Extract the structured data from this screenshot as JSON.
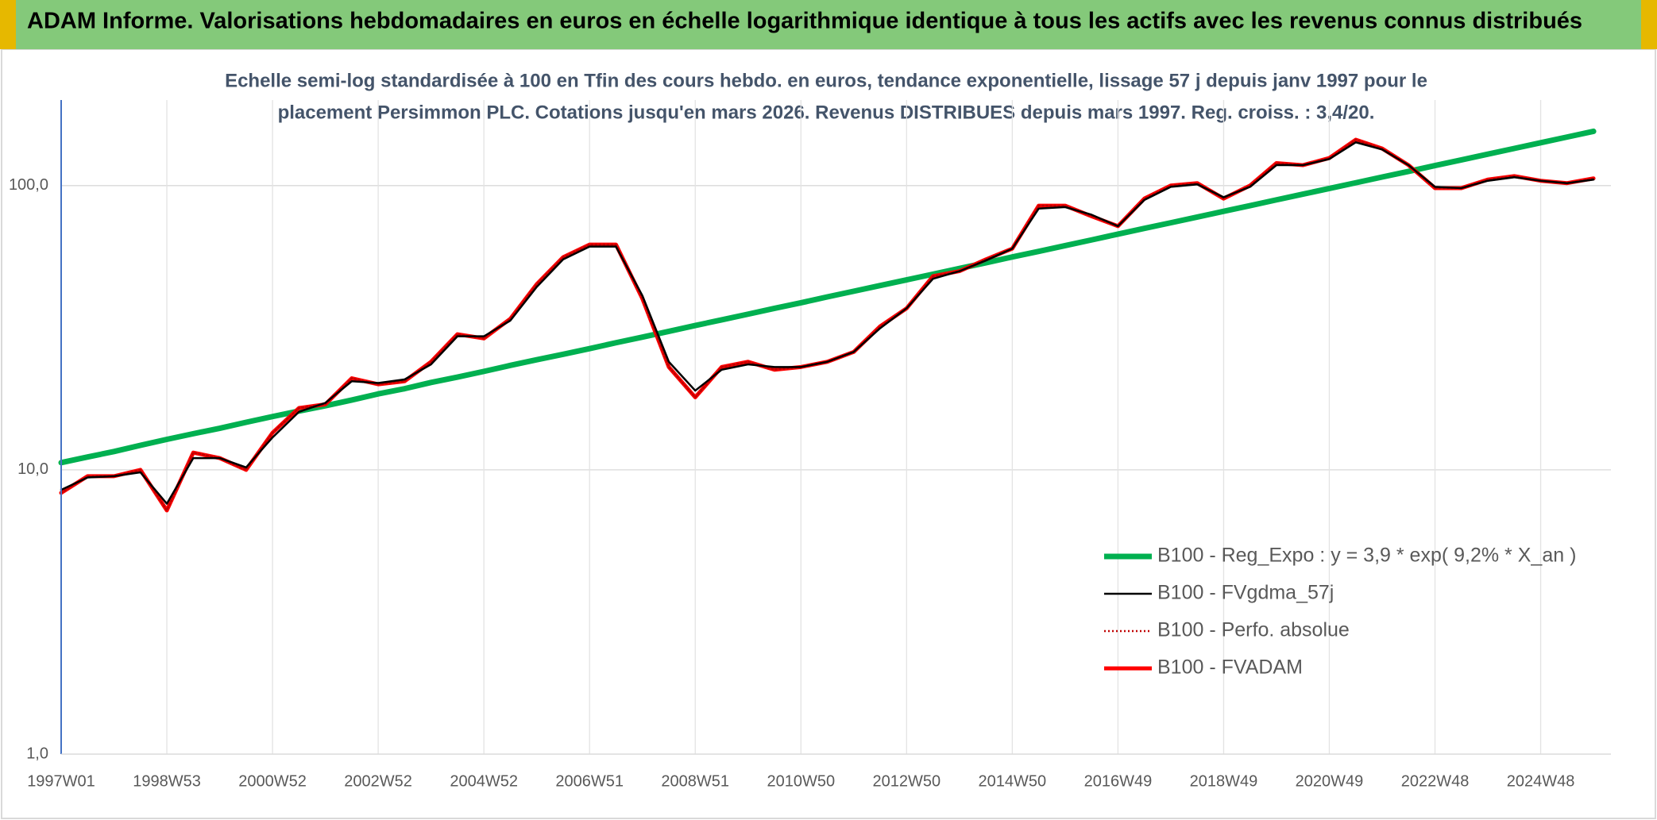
{
  "chart_data": {
    "type": "line",
    "title": "ADAM Informe. Valorisations hebdomadaires en euros en échelle logarithmique identique à tous les actifs avec les revenus connus distribués",
    "subtitle": [
      "Echelle semi-log standardisée à 100 en Tfin des cours hebdo. en euros, tendance exponentielle, lissage 57 j depuis janv 1997 pour le",
      "placement Persimmon PLC. Cotations jusqu'en mars 2026. Revenus DISTRIBUES depuis mars 1997. Reg. croiss. : 3,4/20."
    ],
    "categories": [
      "1997W01",
      null,
      null,
      null,
      "1998W53",
      null,
      null,
      null,
      "2000W52",
      null,
      null,
      null,
      "2002W52",
      null,
      null,
      null,
      "2004W52",
      null,
      null,
      null,
      "2006W51",
      null,
      null,
      null,
      "2008W51",
      null,
      null,
      null,
      "2010W50",
      null,
      null,
      null,
      "2012W50",
      null,
      null,
      null,
      "2014W50",
      null,
      null,
      null,
      "2016W49",
      null,
      null,
      null,
      "2018W49",
      null,
      null,
      null,
      "2020W49",
      null,
      null,
      null,
      "2022W48",
      null,
      null,
      null,
      "2024W48",
      null,
      null
    ],
    "log_y": true,
    "ylim": [
      1,
      200
    ],
    "yticks": [
      {
        "value": 1,
        "label": "1,0"
      },
      {
        "value": 10,
        "label": "10,0"
      },
      {
        "value": 100,
        "label": "100,0"
      }
    ],
    "grid": true,
    "legend": "lower right",
    "series": [
      {
        "name": "B100 - Reg_Expo : y = 3,9 * exp( 9,2% *  X_an )",
        "color": "#00b050",
        "style": "solid",
        "values": [
          10.6,
          11.1,
          11.6,
          12.2,
          12.8,
          13.4,
          14.0,
          14.7,
          15.4,
          16.1,
          16.8,
          17.6,
          18.5,
          19.3,
          20.3,
          21.2,
          22.2,
          23.3,
          24.4,
          25.5,
          26.7,
          28.0,
          29.3,
          30.7,
          32.2,
          33.7,
          35.3,
          37.0,
          38.7,
          40.6,
          42.5,
          44.5,
          46.6,
          48.8,
          51.1,
          53.5,
          56.1,
          58.7,
          61.5,
          64.4,
          67.5,
          70.7,
          74.0,
          77.5,
          81.2,
          85.0,
          89.1,
          93.3,
          97.7,
          102.3,
          107.2,
          112.2,
          117.6,
          123.1,
          129.0,
          135.1,
          141.5,
          148.2,
          155.2
        ]
      },
      {
        "name": "B100 - FVgdma_57j",
        "color": "#000000",
        "style": "solid",
        "values": [
          8.5,
          9.4,
          9.5,
          9.8,
          7.6,
          11.0,
          11.0,
          10.2,
          13.0,
          16.0,
          17.2,
          20.5,
          20.2,
          20.8,
          23.5,
          29.5,
          29.5,
          33.5,
          44.0,
          55.0,
          61.0,
          61.0,
          41.0,
          24.0,
          19.0,
          22.5,
          23.5,
          23.0,
          23.0,
          24.0,
          26.0,
          31.5,
          37.0,
          47.0,
          50.0,
          54.5,
          60.0,
          83.0,
          84.0,
          79.0,
          72.0,
          89.0,
          99.0,
          101.0,
          91.0,
          99.0,
          118.0,
          118.0,
          124.0,
          142.0,
          134.0,
          118.0,
          99.0,
          98.0,
          104.0,
          107.0,
          104.0,
          102.0,
          105.0
        ]
      },
      {
        "name": "B100 - Perfo. absolue",
        "color": "#c00000",
        "style": "dotted",
        "values": [
          8.3,
          9.5,
          9.5,
          10.0,
          7.2,
          11.5,
          11.0,
          10.0,
          13.5,
          16.5,
          17.0,
          21.0,
          20.0,
          20.5,
          24.0,
          30.0,
          29.0,
          34.0,
          45.0,
          56.0,
          62.0,
          62.0,
          40.0,
          23.0,
          18.0,
          23.0,
          24.0,
          22.5,
          23.0,
          24.0,
          26.0,
          32.0,
          37.0,
          48.0,
          50.0,
          55.0,
          60.0,
          85.0,
          85.0,
          78.0,
          72.0,
          90.0,
          100.0,
          102.0,
          90.0,
          100.0,
          120.0,
          118.0,
          125.0,
          145.0,
          135.0,
          118.0,
          98.0,
          98.0,
          105.0,
          108.0,
          104.0,
          102.0,
          106.0
        ]
      },
      {
        "name": "B100 - FVADAM",
        "color": "#ff0000",
        "style": "solid",
        "values": [
          8.3,
          9.5,
          9.5,
          10.0,
          7.2,
          11.5,
          11.0,
          10.0,
          13.5,
          16.5,
          17.0,
          21.0,
          20.0,
          20.5,
          24.0,
          30.0,
          29.0,
          34.0,
          45.0,
          56.0,
          62.0,
          62.0,
          40.0,
          23.0,
          18.0,
          23.0,
          24.0,
          22.5,
          23.0,
          24.0,
          26.0,
          32.0,
          37.0,
          48.0,
          50.0,
          55.0,
          60.0,
          85.0,
          85.0,
          78.0,
          72.0,
          90.0,
          100.0,
          102.0,
          90.0,
          100.0,
          120.0,
          118.0,
          125.0,
          145.0,
          135.0,
          118.0,
          98.0,
          98.0,
          105.0,
          108.0,
          104.0,
          102.0,
          106.0
        ]
      }
    ]
  }
}
